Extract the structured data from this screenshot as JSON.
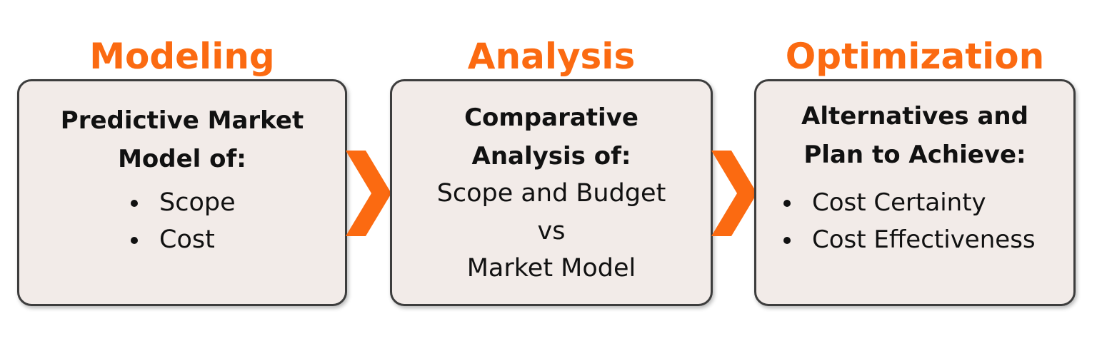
{
  "stages": [
    {
      "title": "Modeling",
      "heading_lines": [
        "Predictive Market",
        "Model of:"
      ],
      "bullets": [
        "Scope",
        "Cost"
      ]
    },
    {
      "title": "Analysis",
      "heading_lines": [
        "Comparative",
        "Analysis of:"
      ],
      "body_lines": [
        "Scope and Budget",
        "vs",
        "Market Model"
      ]
    },
    {
      "title": "Optimization",
      "heading_lines": [
        "Alternatives and",
        "Plan to Achieve:"
      ],
      "bullets": [
        "Cost Certainty",
        "Cost Effectiveness"
      ]
    }
  ],
  "colors": {
    "accent": "#fb6a11",
    "card_fill": "#f2ebe8",
    "card_border": "#3d3d3d",
    "text": "#111111"
  },
  "icons": {
    "connector": "chevron-right-icon",
    "bullet": "bullet-dot-icon"
  }
}
